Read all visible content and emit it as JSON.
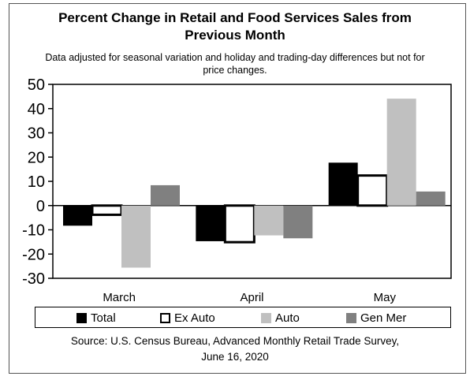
{
  "chart_data": {
    "type": "bar",
    "title_line1": "Percent Change in Retail and Food Services Sales from",
    "title_line2": "Previous Month",
    "subtitle_line1": "Data adjusted for seasonal variation and holiday and trading-day differences but not for",
    "subtitle_line2": "price changes.",
    "categories": [
      "March",
      "April",
      "May"
    ],
    "series": [
      {
        "name": "Total",
        "values": [
          -8.3,
          -14.7,
          17.7
        ],
        "color": "#000000"
      },
      {
        "name": "Ex Auto",
        "values": [
          -3.8,
          -15.1,
          12.4
        ],
        "color": "#ffffff"
      },
      {
        "name": "Auto",
        "values": [
          -25.6,
          -12.3,
          44.1
        ],
        "color": "#c0c0c0"
      },
      {
        "name": "Gen Mer",
        "values": [
          8.4,
          -13.5,
          5.8
        ],
        "color": "#808080"
      }
    ],
    "ylim": [
      -30,
      50
    ],
    "yticks": [
      "50",
      "40",
      "30",
      "20",
      "10",
      "0",
      "-10",
      "-20",
      "-30"
    ],
    "ytick_values": [
      50,
      40,
      30,
      20,
      10,
      0,
      -10,
      -20,
      -30
    ],
    "grid": false,
    "legend_position": "bottom"
  },
  "source_line1": "Source: U.S. Census Bureau, Advanced Monthly Retail Trade Survey,",
  "source_line2": "June 16, 2020"
}
